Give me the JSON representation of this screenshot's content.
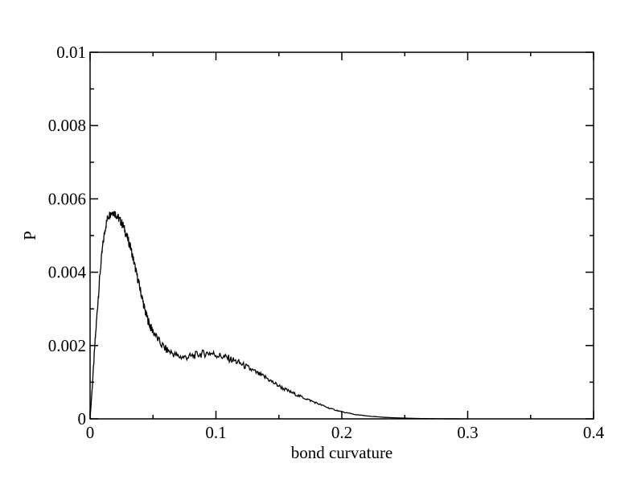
{
  "chart_data": {
    "type": "line",
    "title": "",
    "xlabel": "bond curvature",
    "ylabel": "P",
    "xlim": [
      0,
      0.4
    ],
    "ylim": [
      0,
      0.01
    ],
    "x_ticks": [
      0,
      0.1,
      0.2,
      0.3,
      0.4
    ],
    "x_tick_labels": [
      "0",
      "0.1",
      "0.2",
      "0.3",
      "0.4"
    ],
    "y_ticks": [
      0,
      0.002,
      0.004,
      0.006,
      0.008,
      0.01
    ],
    "y_tick_labels": [
      "0",
      "0.002",
      "0.004",
      "0.006",
      "0.008",
      "0.01"
    ],
    "grid": false,
    "line_color": "#000000",
    "series": [
      {
        "x": [
          0.0,
          0.002,
          0.004,
          0.006,
          0.008,
          0.01,
          0.012,
          0.014,
          0.016,
          0.018,
          0.02,
          0.022,
          0.024,
          0.026,
          0.028,
          0.03,
          0.032,
          0.034,
          0.036,
          0.038,
          0.04,
          0.042,
          0.044,
          0.046,
          0.048,
          0.05,
          0.055,
          0.06,
          0.065,
          0.07,
          0.075,
          0.08,
          0.085,
          0.09,
          0.095,
          0.1,
          0.105,
          0.11,
          0.115,
          0.12,
          0.125,
          0.13,
          0.135,
          0.14,
          0.145,
          0.15,
          0.155,
          0.16,
          0.165,
          0.17,
          0.175,
          0.18,
          0.185,
          0.19,
          0.195,
          0.2,
          0.21,
          0.22,
          0.23,
          0.24,
          0.25,
          0.26,
          0.27,
          0.28,
          0.29,
          0.3
        ],
        "values": [
          0.0,
          0.001,
          0.0021,
          0.0031,
          0.004,
          0.0047,
          0.0052,
          0.0055,
          0.0056,
          0.00565,
          0.0056,
          0.0055,
          0.0054,
          0.0053,
          0.0051,
          0.0049,
          0.0047,
          0.0044,
          0.0041,
          0.0038,
          0.0035,
          0.0032,
          0.0029,
          0.0027,
          0.0025,
          0.0024,
          0.0021,
          0.0019,
          0.0018,
          0.0017,
          0.00168,
          0.0017,
          0.00175,
          0.00178,
          0.0018,
          0.00175,
          0.0017,
          0.00165,
          0.00158,
          0.0015,
          0.0014,
          0.0013,
          0.0012,
          0.00112,
          0.001,
          0.0009,
          0.0008,
          0.00072,
          0.00064,
          0.00057,
          0.0005,
          0.00043,
          0.00036,
          0.00029,
          0.00024,
          0.00019,
          0.00012,
          8e-05,
          5e-05,
          3e-05,
          2e-05,
          1e-05,
          5e-06,
          2e-06,
          1e-06,
          0.0
        ]
      }
    ]
  }
}
